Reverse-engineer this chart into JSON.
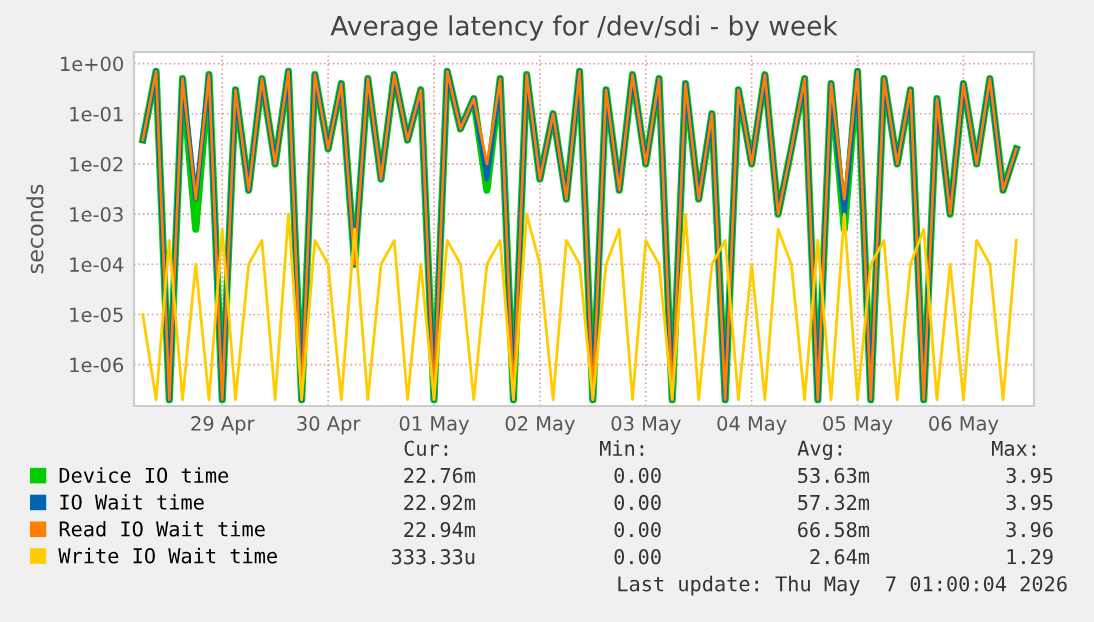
{
  "chart_data": {
    "type": "line",
    "title": "Average latency for /dev/sdi - by week",
    "ylabel": "seconds",
    "x": [
      "2026-04-28T18:00",
      "2026-04-28T21:00",
      "2026-04-29T00:00",
      "2026-04-29T03:00",
      "2026-04-29T06:00",
      "2026-04-29T09:00",
      "2026-04-29T12:00",
      "2026-04-29T15:00",
      "2026-04-29T18:00",
      "2026-04-29T21:00",
      "2026-04-30T00:00",
      "2026-04-30T03:00",
      "2026-04-30T06:00",
      "2026-04-30T09:00",
      "2026-04-30T12:00",
      "2026-04-30T15:00",
      "2026-04-30T18:00",
      "2026-04-30T21:00",
      "2026-05-01T00:00",
      "2026-05-01T03:00",
      "2026-05-01T06:00",
      "2026-05-01T09:00",
      "2026-05-01T12:00",
      "2026-05-01T15:00",
      "2026-05-01T18:00",
      "2026-05-01T21:00",
      "2026-05-02T00:00",
      "2026-05-02T03:00",
      "2026-05-02T06:00",
      "2026-05-02T09:00",
      "2026-05-02T12:00",
      "2026-05-02T15:00",
      "2026-05-02T18:00",
      "2026-05-02T21:00",
      "2026-05-03T00:00",
      "2026-05-03T03:00",
      "2026-05-03T06:00",
      "2026-05-03T09:00",
      "2026-05-03T12:00",
      "2026-05-03T15:00",
      "2026-05-03T18:00",
      "2026-05-03T21:00",
      "2026-05-04T00:00",
      "2026-05-04T03:00",
      "2026-05-04T06:00",
      "2026-05-04T09:00",
      "2026-05-04T12:00",
      "2026-05-04T15:00",
      "2026-05-04T18:00",
      "2026-05-04T21:00",
      "2026-05-05T00:00",
      "2026-05-05T03:00",
      "2026-05-05T06:00",
      "2026-05-05T09:00",
      "2026-05-05T12:00",
      "2026-05-05T15:00",
      "2026-05-05T18:00",
      "2026-05-05T21:00",
      "2026-05-06T00:00",
      "2026-05-06T03:00",
      "2026-05-06T06:00",
      "2026-05-06T09:00",
      "2026-05-06T12:00",
      "2026-05-06T15:00",
      "2026-05-06T18:00",
      "2026-05-06T21:00",
      "2026-05-07T00:00"
    ],
    "series": [
      {
        "name": "Device IO time",
        "color": "#00cc00",
        "values": [
          0.03,
          0.7,
          2e-07,
          0.5,
          0.0005,
          0.6,
          2e-07,
          0.3,
          0.003,
          0.5,
          0.01,
          0.7,
          2e-07,
          0.6,
          0.02,
          0.4,
          0.0001,
          0.5,
          0.005,
          0.6,
          0.03,
          0.3,
          2e-07,
          0.7,
          0.05,
          0.2,
          0.003,
          0.5,
          2e-07,
          0.6,
          0.005,
          0.1,
          0.002,
          0.7,
          2e-07,
          0.3,
          0.003,
          0.6,
          0.01,
          0.5,
          2e-07,
          0.4,
          0.002,
          0.1,
          2e-07,
          0.3,
          0.01,
          0.6,
          0.001,
          0.02,
          0.5,
          2e-07,
          0.4,
          0.0005,
          0.7,
          2e-07,
          0.5,
          0.01,
          0.3,
          2e-07,
          0.2,
          0.001,
          0.4,
          0.01,
          0.5,
          0.003,
          0.02
        ]
      },
      {
        "name": "IO Wait time",
        "color": "#0066b3",
        "values": [
          0.03,
          0.7,
          2e-07,
          0.5,
          0.002,
          0.6,
          2e-07,
          0.3,
          0.003,
          0.5,
          0.01,
          0.7,
          2e-07,
          0.6,
          0.02,
          0.4,
          0.0001,
          0.5,
          0.005,
          0.6,
          0.03,
          0.3,
          2e-07,
          0.7,
          0.05,
          0.2,
          0.005,
          0.5,
          2e-07,
          0.6,
          0.005,
          0.1,
          0.002,
          0.7,
          2e-07,
          0.3,
          0.003,
          0.6,
          0.01,
          0.5,
          2e-07,
          0.4,
          0.002,
          0.1,
          2e-07,
          0.3,
          0.01,
          0.6,
          0.001,
          0.02,
          0.5,
          2e-07,
          0.4,
          0.001,
          0.7,
          2e-07,
          0.5,
          0.01,
          0.3,
          2e-07,
          0.2,
          0.001,
          0.4,
          0.01,
          0.5,
          0.003,
          0.02
        ]
      },
      {
        "name": "Read IO Wait time",
        "color": "#ff8000",
        "values": [
          0.03,
          0.7,
          2e-07,
          0.5,
          0.002,
          0.6,
          2e-07,
          0.3,
          0.003,
          0.5,
          0.01,
          0.7,
          2e-07,
          0.6,
          0.02,
          0.4,
          0.0001,
          0.5,
          0.005,
          0.6,
          0.03,
          0.3,
          2e-07,
          0.7,
          0.05,
          0.2,
          0.01,
          0.5,
          2e-07,
          0.6,
          0.005,
          0.1,
          0.002,
          0.7,
          2e-07,
          0.3,
          0.003,
          0.6,
          0.01,
          0.5,
          2e-07,
          0.4,
          0.002,
          0.1,
          2e-07,
          0.3,
          0.01,
          0.6,
          0.001,
          0.02,
          0.5,
          2e-07,
          0.4,
          0.002,
          0.7,
          2e-07,
          0.5,
          0.01,
          0.3,
          2e-07,
          0.2,
          0.001,
          0.4,
          0.01,
          0.5,
          0.003,
          0.02
        ]
      },
      {
        "name": "Write IO Wait time",
        "color": "#ffcc00",
        "values": [
          1e-05,
          2e-07,
          0.0003,
          2e-07,
          0.0001,
          2e-07,
          0.0005,
          2e-07,
          0.0001,
          0.0003,
          2e-07,
          0.001,
          2e-07,
          0.0003,
          0.0001,
          2e-07,
          0.0005,
          2e-07,
          0.0001,
          0.0003,
          2e-07,
          0.0001,
          2e-07,
          0.0003,
          0.0001,
          2e-07,
          0.0001,
          0.0003,
          2e-07,
          0.001,
          0.0001,
          2e-07,
          0.0003,
          0.0001,
          2e-07,
          0.0001,
          0.0005,
          2e-07,
          0.0003,
          0.0001,
          2e-07,
          0.001,
          2e-07,
          0.0001,
          0.0003,
          2e-07,
          0.0001,
          2e-07,
          0.0005,
          0.0001,
          2e-07,
          0.0003,
          2e-07,
          0.001,
          2e-07,
          0.0001,
          0.0003,
          2e-07,
          0.0001,
          0.0005,
          2e-07,
          0.0001,
          2e-07,
          0.0003,
          0.0001,
          2e-07,
          0.0003
        ]
      }
    ],
    "log": "y",
    "ylim": [
      1.5e-07,
      1.7
    ],
    "yticks": [
      {
        "value": 1,
        "label": "1e+00"
      },
      {
        "value": 0.1,
        "label": "1e-01"
      },
      {
        "value": 0.01,
        "label": "1e-02"
      },
      {
        "value": 0.001,
        "label": "1e-03"
      },
      {
        "value": 0.0001,
        "label": "1e-04"
      },
      {
        "value": 1e-05,
        "label": "1e-05"
      },
      {
        "value": 1e-06,
        "label": "1e-06"
      }
    ],
    "xlim": [
      "2026-04-28T16:00",
      "2026-05-07T04:00"
    ],
    "xticks": [
      {
        "value": "2026-04-29T12:00",
        "label": "29 Apr"
      },
      {
        "value": "2026-04-30T12:00",
        "label": "30 Apr"
      },
      {
        "value": "2026-05-01T12:00",
        "label": "01 May"
      },
      {
        "value": "2026-05-02T12:00",
        "label": "02 May"
      },
      {
        "value": "2026-05-03T12:00",
        "label": "03 May"
      },
      {
        "value": "2026-05-04T12:00",
        "label": "04 May"
      },
      {
        "value": "2026-05-05T12:00",
        "label": "05 May"
      },
      {
        "value": "2026-05-06T12:00",
        "label": "06 May"
      }
    ],
    "grid": true,
    "legend": "bottom",
    "annotations": [
      "Cur:",
      "Min:",
      "Avg:",
      "Max:",
      "22.76m",
      "0.00",
      "53.63m",
      "3.95",
      "22.92m",
      "0.00",
      "57.32m",
      "3.95",
      "22.94m",
      "0.00",
      "66.58m",
      "3.96",
      "333.33u",
      "0.00",
      "2.64m",
      "1.29",
      "Last update: Thu May  7 01:00:04 2026"
    ]
  }
}
